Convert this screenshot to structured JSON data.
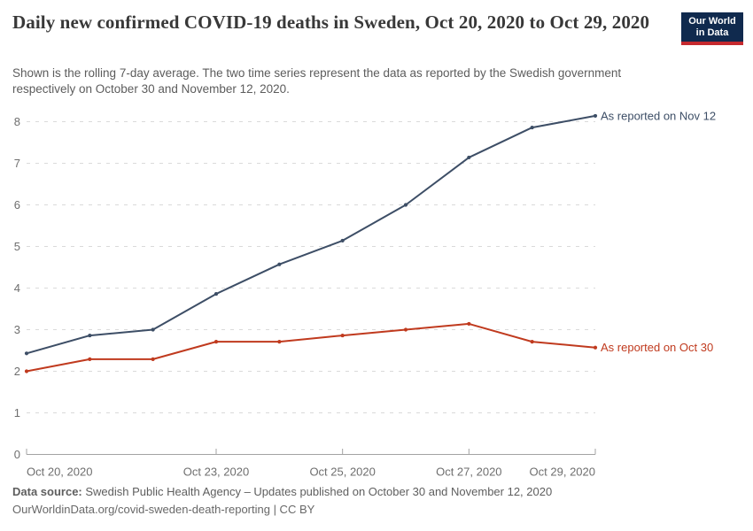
{
  "header": {
    "title": "Daily new confirmed COVID-19 deaths in Sweden, Oct 20, 2020 to Oct 29, 2020",
    "subtitle": "Shown is the rolling 7-day average. The two time series represent the data as reported by the Swedish government respectively on October 30 and November 12, 2020.",
    "logo": {
      "line1": "Our World",
      "line2": "in Data"
    }
  },
  "footer": {
    "source_label": "Data source:",
    "source_text": " Swedish Public Health Agency – Updates published on October 30 and November 12, 2020",
    "attribution": "OurWorldinData.org/covid-sweden-death-reporting | CC BY"
  },
  "chart_data": {
    "type": "line",
    "title": "Daily new confirmed COVID-19 deaths in Sweden, Oct 20, 2020 to Oct 29, 2020",
    "subtitle": "Shown is the rolling 7-day average. The two time series represent the data as reported by the Swedish government respectively on October 30 and November 12, 2020.",
    "x": [
      "Oct 20, 2020",
      "Oct 21, 2020",
      "Oct 22, 2020",
      "Oct 23, 2020",
      "Oct 24, 2020",
      "Oct 25, 2020",
      "Oct 26, 2020",
      "Oct 27, 2020",
      "Oct 28, 2020",
      "Oct 29, 2020"
    ],
    "series": [
      {
        "name": "As reported on Nov 12",
        "color": "#3d4e66",
        "values": [
          2.43,
          2.86,
          3.0,
          3.86,
          4.57,
          5.14,
          6.0,
          7.14,
          7.86,
          8.14
        ]
      },
      {
        "name": "As reported on Oct 30",
        "color": "#c03a1e",
        "values": [
          2.0,
          2.29,
          2.29,
          2.71,
          2.71,
          2.86,
          3.0,
          3.14,
          2.71,
          2.57
        ]
      }
    ],
    "ylim": [
      0,
      8
    ],
    "yticks": [
      0,
      1,
      2,
      3,
      4,
      5,
      6,
      7,
      8
    ],
    "xticks": [
      {
        "index": 0,
        "label": "Oct 20, 2020",
        "align": "start"
      },
      {
        "index": 3,
        "label": "Oct 23, 2020",
        "align": "middle"
      },
      {
        "index": 5,
        "label": "Oct 25, 2020",
        "align": "middle"
      },
      {
        "index": 7,
        "label": "Oct 27, 2020",
        "align": "middle"
      },
      {
        "index": 9,
        "label": "Oct 29, 2020",
        "align": "end"
      }
    ],
    "grid": "horizontal-dashed",
    "legend_position": "line-end-labels"
  }
}
